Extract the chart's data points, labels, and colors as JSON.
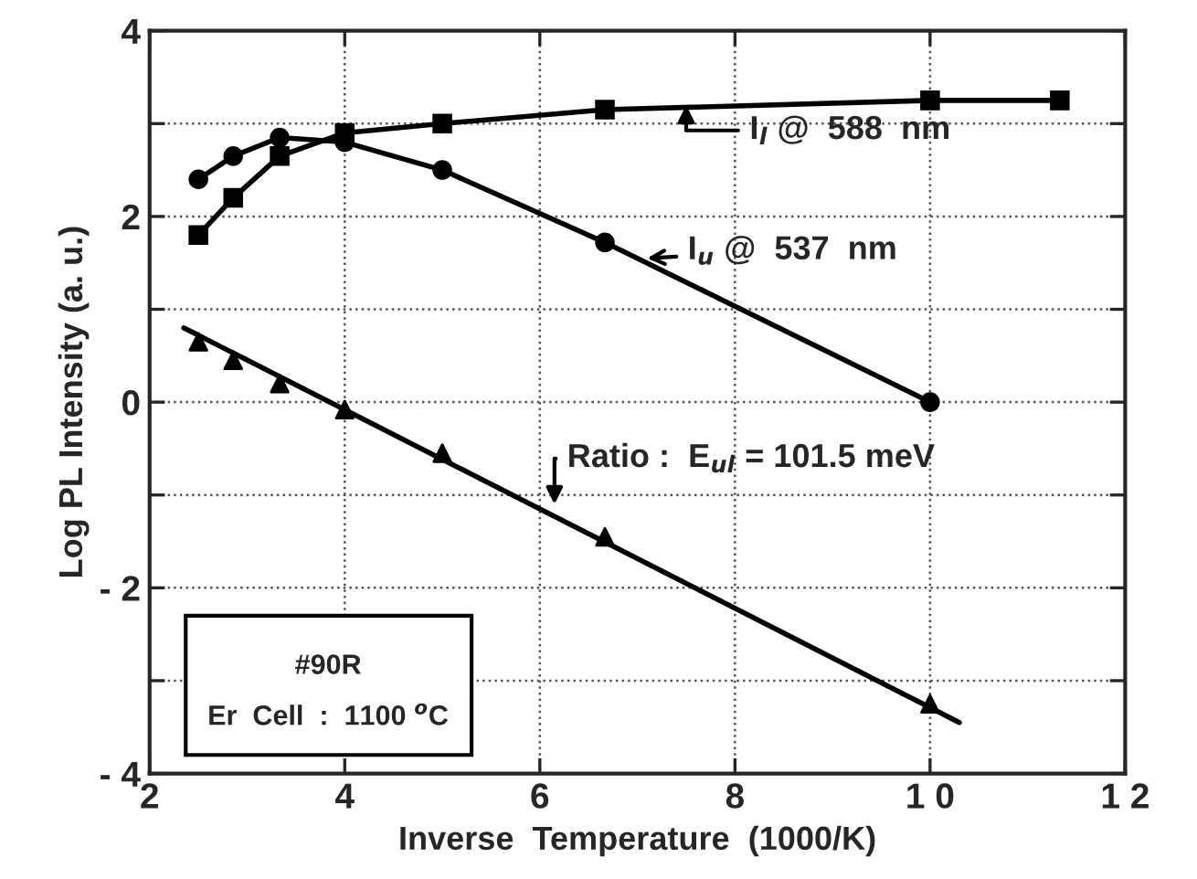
{
  "chart_data": {
    "type": "line",
    "xlabel": "Inverse  Temperature  (1000/K)",
    "ylabel": "Log PL Intensity (a. u.)",
    "series": [
      {
        "marker": "square",
        "color": "#000000",
        "x": [
          2.5,
          2.857,
          3.333,
          4,
          5,
          6.667,
          10,
          11.33
        ],
        "values": [
          1.8,
          2.2,
          2.65,
          2.9,
          3.0,
          3.15,
          3.25,
          3.25
        ]
      },
      {
        "marker": "circle",
        "color": "#000000",
        "x": [
          2.5,
          2.857,
          3.333,
          4,
          5,
          6.667,
          10
        ],
        "values": [
          2.4,
          2.65,
          2.85,
          2.8,
          2.5,
          1.72,
          0.0
        ]
      },
      {
        "type": "scatter",
        "marker": "triangle",
        "color": "#000000",
        "x": [
          2.5,
          2.857,
          3.333,
          4,
          5,
          6.667,
          10
        ],
        "values": [
          0.65,
          0.45,
          0.2,
          -0.08,
          -0.55,
          -1.45,
          -3.25
        ]
      },
      {
        "marker": "none",
        "color": "#000000",
        "x": [
          2.35,
          10.3
        ],
        "values": [
          0.8,
          -3.45
        ]
      }
    ],
    "xlim": [
      2,
      12
    ],
    "ylim": [
      -4,
      4
    ],
    "xticks": [
      2,
      4,
      6,
      8,
      {
        "value": 10,
        "label": "1 0"
      },
      {
        "value": 12,
        "label": "1 2"
      }
    ],
    "yticks": [
      {
        "value": -4,
        "label": "- 4"
      },
      {
        "value": -3,
        "label": null
      },
      {
        "value": -2,
        "label": "- 2"
      },
      {
        "value": -1,
        "label": null
      },
      0,
      {
        "value": 1,
        "label": null
      },
      2,
      {
        "value": 3,
        "label": null
      },
      4
    ],
    "grid": true,
    "line_style": "solid",
    "annotations": [
      {
        "text": "I$_{l}$ @  588  nm",
        "x": 7.5,
        "y": 3.2
      },
      {
        "text": "I$_{u}$ @  537  nm",
        "x": 7.1,
        "y": 1.55
      },
      {
        "text": "Ratio :  E$_{ul}$ = 101.5 meV",
        "x": 6.15,
        "y": -1.1
      },
      "#90R",
      "Er  Cell  :  1100 $^{o}$C"
    ]
  }
}
